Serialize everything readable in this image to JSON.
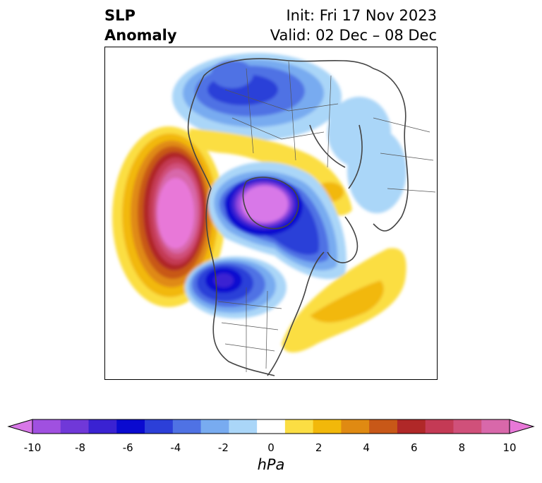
{
  "header": {
    "title_line1": "SLP",
    "title_line2": "Anomaly",
    "init": "Init: Fri 17 Nov 2023",
    "valid": "Valid: 02 Dec – 08 Dec"
  },
  "colorbar": {
    "unit": "hPa",
    "tick_labels": [
      "-10",
      "-8",
      "-6",
      "-4",
      "-2",
      "0",
      "2",
      "4",
      "6",
      "8",
      "10"
    ],
    "colors": [
      "#d878e8",
      "#a050e0",
      "#7038d8",
      "#3a22d2",
      "#0a0ad0",
      "#2c3fd8",
      "#4f72e4",
      "#78abf0",
      "#aad6f8",
      "#ffffff",
      "#fbde43",
      "#f2b80a",
      "#e08a12",
      "#c85818",
      "#b02828",
      "#c43a55",
      "#d0507a",
      "#d868aa",
      "#e878d8"
    ]
  },
  "map": {
    "projection": "north-polar-stereographic",
    "features": [
      {
        "name": "Strong negative anomaly over Arctic / Greenland region",
        "sign": "negative"
      },
      {
        "name": "Positive anomaly over North Pacific / Gulf of Alaska",
        "sign": "positive"
      },
      {
        "name": "Negative anomaly over western Canada / US",
        "sign": "negative"
      },
      {
        "name": "Positive anomaly over western North Atlantic",
        "sign": "positive"
      },
      {
        "name": "Negative anomaly over Siberia",
        "sign": "negative"
      },
      {
        "name": "Positive band over northern Asia / Scandinavia",
        "sign": "positive"
      }
    ]
  }
}
